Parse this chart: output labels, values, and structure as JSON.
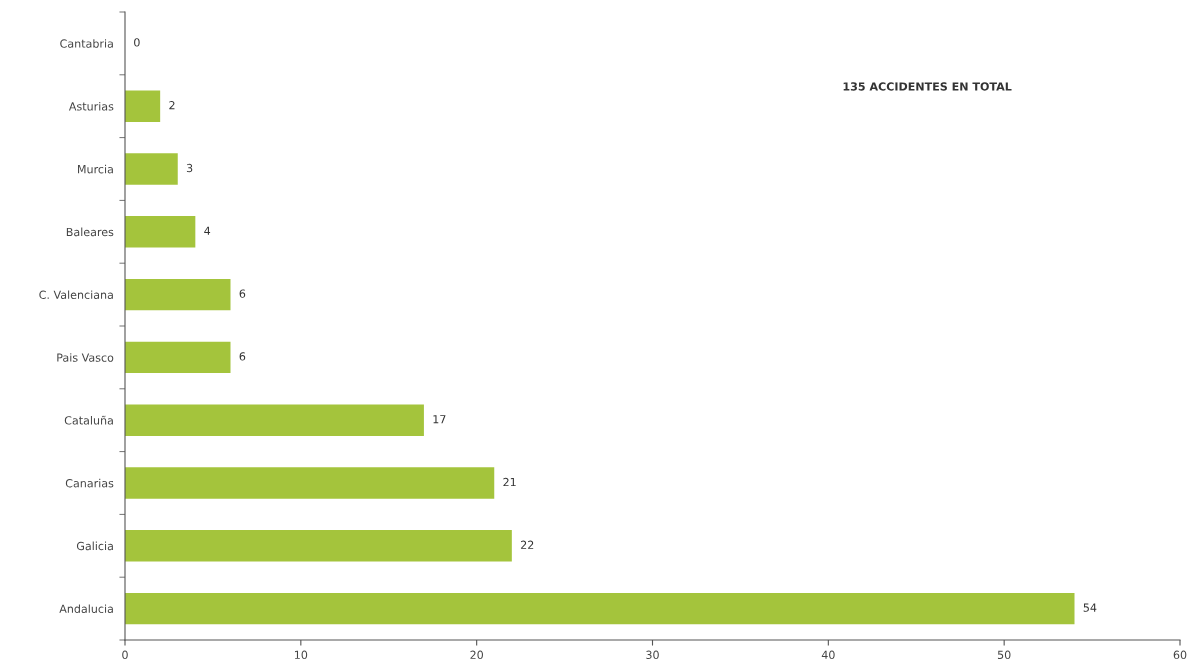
{
  "chart_data": {
    "type": "bar",
    "orientation": "horizontal",
    "categories": [
      "Cantabria",
      "Asturias",
      "Murcia",
      "Baleares",
      "C. Valenciana",
      "Pais Vasco",
      "Cataluña",
      "Canarias",
      "Galicia",
      "Andalucia"
    ],
    "values": [
      0,
      2,
      3,
      4,
      6,
      6,
      17,
      21,
      22,
      54
    ],
    "color": "#a4c43c",
    "data_labels": true,
    "xlim": [
      0,
      60
    ],
    "xticks": [
      0,
      10,
      20,
      30,
      40,
      50,
      60
    ],
    "annotations": [
      "135 ACCIDENTES EN TOTAL"
    ],
    "grid": false,
    "legend": false
  }
}
